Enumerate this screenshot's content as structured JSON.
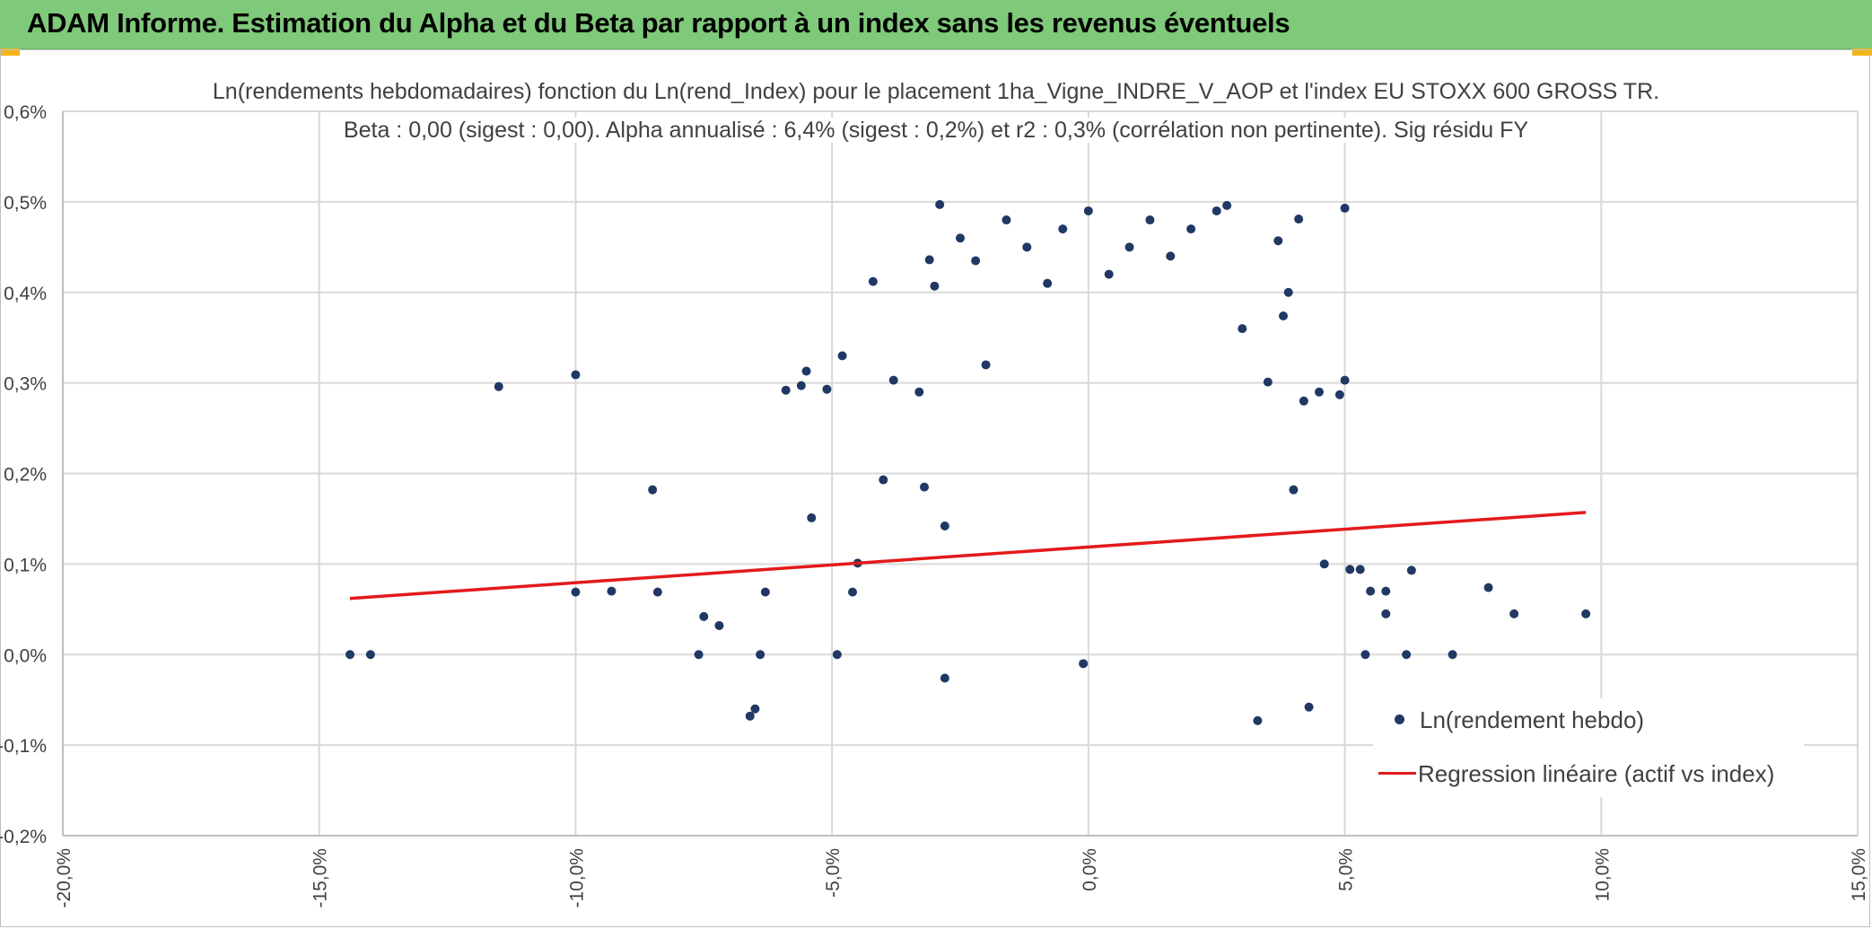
{
  "header": {
    "title": "ADAM Informe. Estimation du Alpha et du Beta par rapport à un index sans les revenus éventuels"
  },
  "colors": {
    "header_bg": "#7fc97a",
    "corner_accent": "#f2b418",
    "points": "#203864",
    "regression": "#e31a1c",
    "grid": "#d9d9d9",
    "text": "#404040"
  },
  "chart_data": {
    "type": "scatter",
    "title_line1": "Ln(rendements hebdomadaires) fonction du Ln(rend_Index) pour le placement 1ha_Vigne_INDRE_V_AOP et l'index EU STOXX 600 GROSS TR.",
    "title_line2": "Beta : 0,00 (sigest : 0,00). Alpha annualisé : 6,4% (sigest : 0,2%) et r2 : 0,3% (corrélation non pertinente). Sig résidu FY",
    "xlabel": "",
    "ylabel": "",
    "xlim": [
      -20,
      15
    ],
    "ylim": [
      -0.2,
      0.6
    ],
    "x_ticks": [
      "-20,0%",
      "-15,0%",
      "-10,0%",
      "-5,0%",
      "0,0%",
      "5,0%",
      "10,0%",
      "15,0%"
    ],
    "y_ticks": [
      "0,6%",
      "0,5%",
      "0,4%",
      "0,3%",
      "0,2%",
      "0,1%",
      "0,0%",
      "-0,1%",
      "-0,2%"
    ],
    "grid": true,
    "legend_position": "bottom-right",
    "legend": [
      "Ln(rendement hebdo)",
      "Regression linéaire (actif vs index)"
    ],
    "series": [
      {
        "name": "Ln(rendement hebdo)",
        "kind": "scatter",
        "points": [
          [
            -14.4,
            0.0
          ],
          [
            -14.0,
            0.0
          ],
          [
            -11.5,
            0.296
          ],
          [
            -10.0,
            0.309
          ],
          [
            -10.0,
            0.069
          ],
          [
            -9.3,
            0.07
          ],
          [
            -8.5,
            0.182
          ],
          [
            -8.4,
            0.069
          ],
          [
            -7.6,
            0.0
          ],
          [
            -7.5,
            0.042
          ],
          [
            -7.2,
            0.032
          ],
          [
            -6.6,
            -0.068
          ],
          [
            -6.5,
            -0.06
          ],
          [
            -6.4,
            0.0
          ],
          [
            -6.3,
            0.069
          ],
          [
            -5.9,
            0.292
          ],
          [
            -5.6,
            0.297
          ],
          [
            -5.5,
            0.313
          ],
          [
            -5.4,
            0.151
          ],
          [
            -5.1,
            0.293
          ],
          [
            -4.9,
            0.0
          ],
          [
            -4.8,
            0.33
          ],
          [
            -4.6,
            0.069
          ],
          [
            -4.5,
            0.101
          ],
          [
            -4.2,
            0.412
          ],
          [
            -4.0,
            0.193
          ],
          [
            -3.8,
            0.303
          ],
          [
            -3.3,
            0.29
          ],
          [
            -3.2,
            0.185
          ],
          [
            -3.1,
            0.436
          ],
          [
            -3.0,
            0.407
          ],
          [
            -2.9,
            0.497
          ],
          [
            -2.8,
            0.142
          ],
          [
            -2.5,
            0.46
          ],
          [
            -2.2,
            0.435
          ],
          [
            -2.0,
            0.32
          ],
          [
            -1.6,
            0.48
          ],
          [
            -1.2,
            0.45
          ],
          [
            -0.8,
            0.41
          ],
          [
            -0.5,
            0.47
          ],
          [
            0.0,
            0.49
          ],
          [
            0.4,
            0.42
          ],
          [
            0.8,
            0.45
          ],
          [
            1.2,
            0.48
          ],
          [
            1.6,
            0.44
          ],
          [
            2.0,
            0.47
          ],
          [
            2.5,
            0.49
          ],
          [
            2.7,
            0.496
          ],
          [
            3.0,
            0.36
          ],
          [
            3.5,
            0.301
          ],
          [
            3.7,
            0.457
          ],
          [
            3.8,
            0.374
          ],
          [
            3.9,
            0.4
          ],
          [
            4.0,
            0.182
          ],
          [
            4.1,
            0.481
          ],
          [
            4.2,
            0.28
          ],
          [
            4.3,
            -0.058
          ],
          [
            4.5,
            0.29
          ],
          [
            4.6,
            0.1
          ],
          [
            4.9,
            0.287
          ],
          [
            5.0,
            0.493
          ],
          [
            5.0,
            0.303
          ],
          [
            5.1,
            0.094
          ],
          [
            5.3,
            0.094
          ],
          [
            5.4,
            0.0
          ],
          [
            5.5,
            0.07
          ],
          [
            5.8,
            0.07
          ],
          [
            5.8,
            0.045
          ],
          [
            6.2,
            0.0
          ],
          [
            6.3,
            0.093
          ],
          [
            7.1,
            0.0
          ],
          [
            7.8,
            0.074
          ],
          [
            8.3,
            0.045
          ],
          [
            9.7,
            0.045
          ],
          [
            -0.1,
            -0.01
          ],
          [
            -2.8,
            -0.026
          ],
          [
            3.3,
            -0.073
          ]
        ]
      },
      {
        "name": "Regression linéaire (actif vs index)",
        "kind": "line",
        "points": [
          [
            -14.4,
            0.062
          ],
          [
            9.7,
            0.157
          ]
        ]
      }
    ]
  }
}
